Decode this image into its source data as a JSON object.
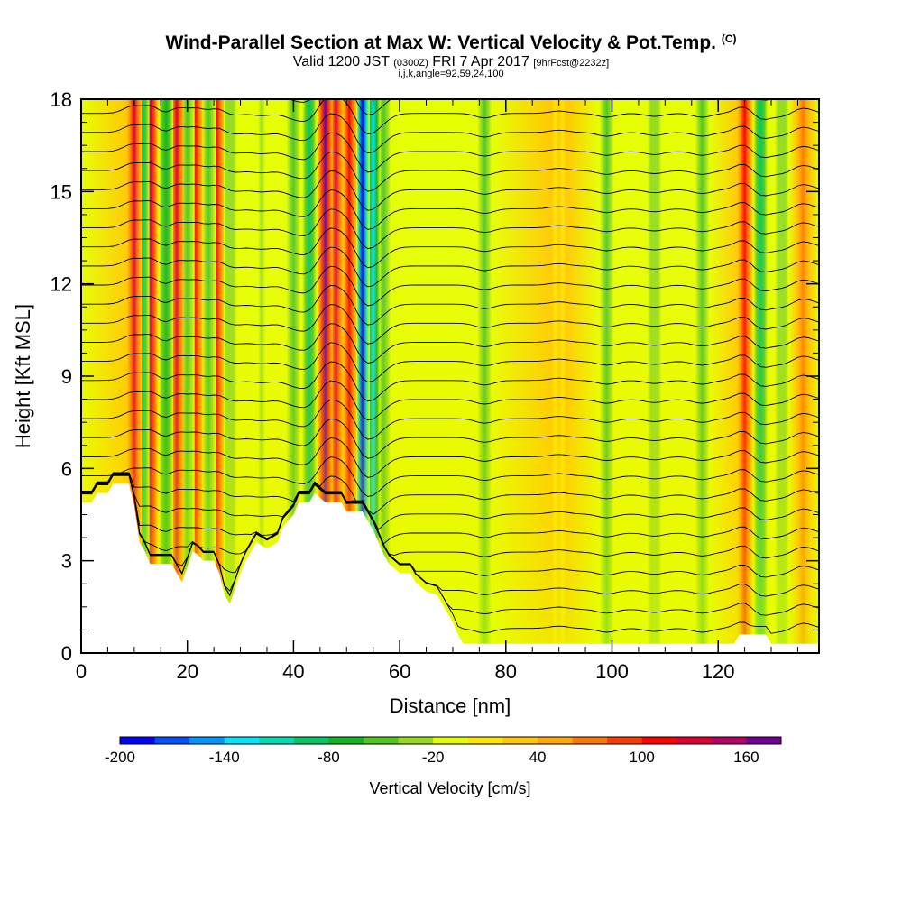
{
  "title": {
    "main": "Wind-Parallel Section at Max W: Vertical Velocity & Pot.Temp.",
    "main_mark": "(C)",
    "valid_prefix": "Valid 1200 JST",
    "valid_utc": "(0300Z)",
    "valid_date": "FRI 7 Apr 2017",
    "forecast": "[9hrFcst@2232z]",
    "params": "i,j,k,angle=92,59,24,100"
  },
  "chart_data": {
    "type": "heatmap",
    "xlabel": "Distance [nm]",
    "ylabel": "Height [Kft MSL]",
    "xlim": [
      0,
      139
    ],
    "ylim": [
      0,
      18
    ],
    "x_ticks": [
      "0",
      "20",
      "40",
      "60",
      "80",
      "100",
      "120"
    ],
    "x_tick_values": [
      0,
      20,
      40,
      60,
      80,
      100,
      120
    ],
    "y_ticks": [
      "0",
      "3",
      "6",
      "9",
      "12",
      "15",
      "18"
    ],
    "y_tick_values": [
      0,
      3,
      6,
      9,
      12,
      15,
      18
    ],
    "colorbar": {
      "label": "Vertical Velocity [cm/s]",
      "tick_labels": [
        "-200",
        "-140",
        "-80",
        "-20",
        "40",
        "100",
        "160"
      ],
      "tick_values": [
        -200,
        -140,
        -80,
        -20,
        40,
        100,
        160
      ],
      "min": -200,
      "max": 180,
      "step": 20,
      "colors": [
        "#0000ff",
        "#0050ff",
        "#0096ff",
        "#00e6ff",
        "#00dcb4",
        "#00c864",
        "#14b41e",
        "#50c81e",
        "#96dc1e",
        "#e6ff00",
        "#ffe600",
        "#ffc800",
        "#ffaa00",
        "#ff7800",
        "#ff3c00",
        "#ff0000",
        "#dc0032",
        "#b40064",
        "#6e0096"
      ]
    },
    "terrain_profile": [
      [
        0,
        4.9
      ],
      [
        2,
        4.9
      ],
      [
        3,
        5.2
      ],
      [
        5,
        5.2
      ],
      [
        6,
        5.5
      ],
      [
        9,
        5.5
      ],
      [
        10,
        4.8
      ],
      [
        11,
        3.6
      ],
      [
        12,
        3.3
      ],
      [
        13,
        2.9
      ],
      [
        17,
        2.9
      ],
      [
        18,
        2.6
      ],
      [
        19,
        2.3
      ],
      [
        20,
        2.8
      ],
      [
        21,
        3.3
      ],
      [
        22,
        3.2
      ],
      [
        23,
        3.0
      ],
      [
        25,
        3.0
      ],
      [
        26,
        2.6
      ],
      [
        27,
        1.9
      ],
      [
        28,
        1.6
      ],
      [
        29,
        2.1
      ],
      [
        30,
        2.6
      ],
      [
        31,
        3.0
      ],
      [
        32,
        3.3
      ],
      [
        33,
        3.6
      ],
      [
        35,
        3.4
      ],
      [
        37,
        3.6
      ],
      [
        38,
        4.1
      ],
      [
        40,
        4.5
      ],
      [
        41,
        4.9
      ],
      [
        43,
        4.9
      ],
      [
        44,
        5.2
      ],
      [
        46,
        4.9
      ],
      [
        49,
        4.9
      ],
      [
        50,
        4.6
      ],
      [
        53,
        4.6
      ],
      [
        54,
        4.3
      ],
      [
        55,
        4.0
      ],
      [
        56,
        3.6
      ],
      [
        57,
        3.2
      ],
      [
        58,
        2.9
      ],
      [
        60,
        2.6
      ],
      [
        62,
        2.6
      ],
      [
        63,
        2.3
      ],
      [
        65,
        2.0
      ],
      [
        67,
        1.9
      ],
      [
        68,
        1.6
      ],
      [
        69,
        1.3
      ],
      [
        70,
        1.0
      ],
      [
        71,
        0.6
      ],
      [
        72,
        0.3
      ],
      [
        123,
        0.3
      ],
      [
        124,
        0.6
      ],
      [
        129,
        0.6
      ],
      [
        130,
        0.3
      ],
      [
        139,
        0.3
      ]
    ],
    "w_columns": [
      {
        "x": 10,
        "w": 130
      },
      {
        "x": 11.5,
        "w": -90
      },
      {
        "x": 13,
        "w": 150
      },
      {
        "x": 16,
        "w": -70
      },
      {
        "x": 18,
        "w": 120
      },
      {
        "x": 20,
        "w": -60
      },
      {
        "x": 21.5,
        "w": 110
      },
      {
        "x": 24,
        "w": -50
      },
      {
        "x": 25.5,
        "w": 100
      },
      {
        "x": 28,
        "w": -40
      },
      {
        "x": 34,
        "w": -30
      },
      {
        "x": 40,
        "w": -60
      },
      {
        "x": 43,
        "w": -100
      },
      {
        "x": 46,
        "w": 160
      },
      {
        "x": 48,
        "w": 120
      },
      {
        "x": 50.5,
        "w": 110
      },
      {
        "x": 53,
        "w": -190
      },
      {
        "x": 55,
        "w": -130
      },
      {
        "x": 57,
        "w": -60
      },
      {
        "x": 76,
        "w": -60
      },
      {
        "x": 90,
        "w": 30
      },
      {
        "x": 99,
        "w": -50
      },
      {
        "x": 108,
        "w": -40
      },
      {
        "x": 117,
        "w": -50
      },
      {
        "x": 125,
        "w": 100
      },
      {
        "x": 128,
        "w": -90
      },
      {
        "x": 132,
        "w": -40
      },
      {
        "x": 136,
        "w": 70
      }
    ]
  }
}
